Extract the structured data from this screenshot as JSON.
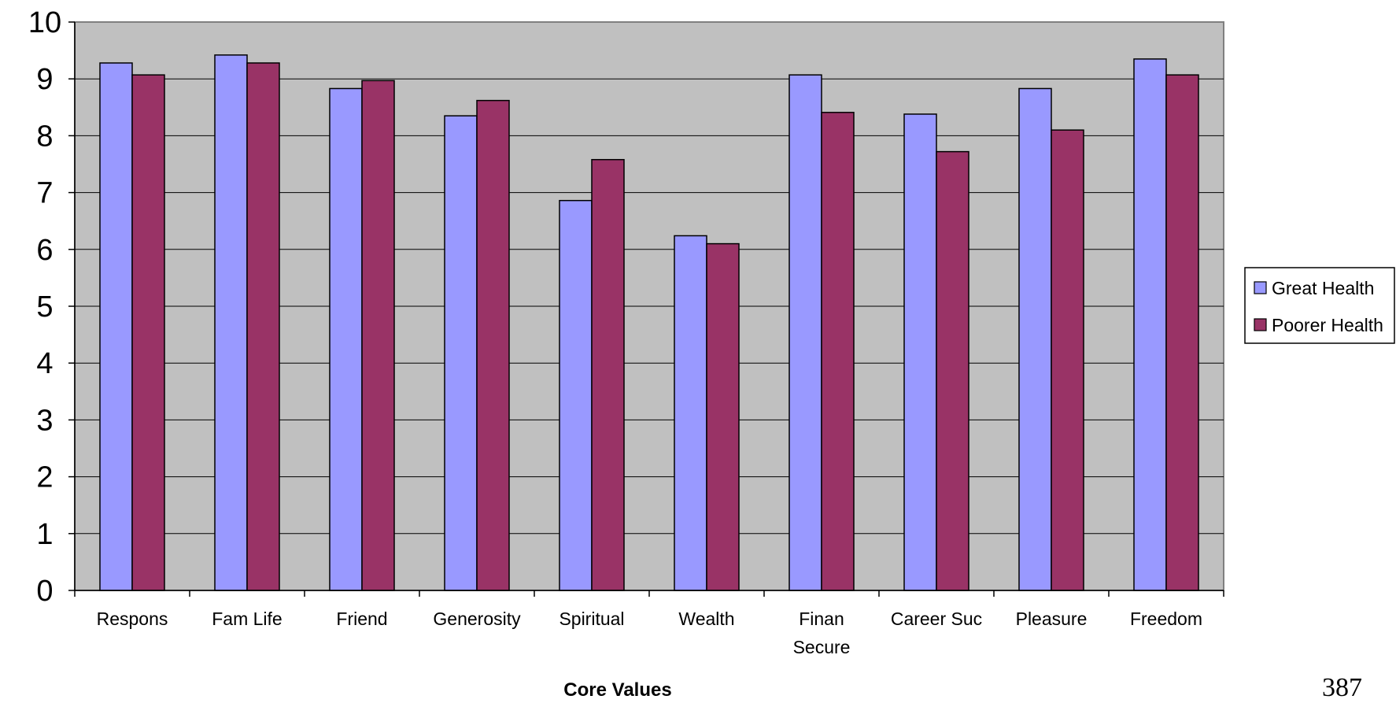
{
  "chart_data": {
    "type": "bar",
    "categories": [
      "Respons",
      "Fam Life",
      "Friend",
      "Generosity",
      "Spiritual",
      "Wealth",
      "Finan Secure",
      "Career Suc",
      "Pleasure",
      "Freedom"
    ],
    "series": [
      {
        "name": "Great Health",
        "color": "#9999ff",
        "values": [
          9.28,
          9.42,
          8.83,
          8.35,
          6.86,
          6.24,
          9.07,
          8.38,
          8.83,
          9.35
        ]
      },
      {
        "name": "Poorer Health",
        "color": "#993366",
        "values": [
          9.07,
          9.28,
          8.97,
          8.62,
          7.58,
          6.1,
          8.41,
          7.72,
          8.1,
          9.07
        ]
      }
    ],
    "xlabel": "Core Values",
    "ylabel": "",
    "ylim": [
      0,
      10
    ],
    "yticks": [
      "0",
      "1",
      "2",
      "3",
      "4",
      "5",
      "6",
      "7",
      "8",
      "9",
      "10"
    ],
    "grid": true,
    "plot_background": "#c0c0c0",
    "legend_position": "right"
  },
  "page_number": "387"
}
